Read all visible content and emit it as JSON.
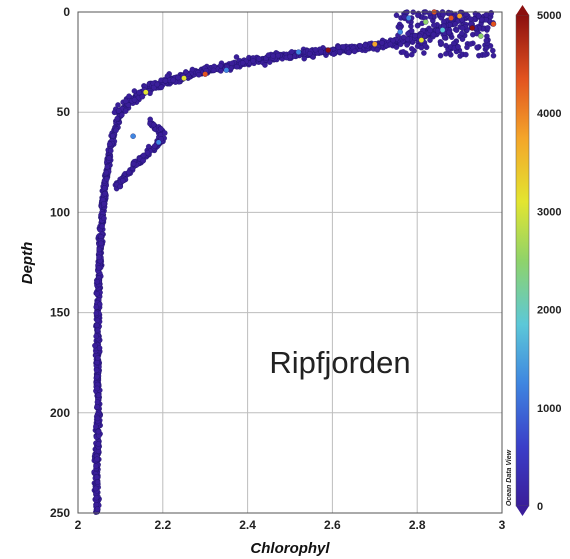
{
  "chart_data": {
    "type": "scatter",
    "title": "",
    "xlabel": "Chlorophyl",
    "ylabel": "Depth",
    "xlim": [
      2,
      3
    ],
    "ylim": [
      0,
      250
    ],
    "y_inverted": true,
    "grid": true,
    "x_ticks": [
      "2",
      "2.2",
      "2.4",
      "2.6",
      "2.8",
      "3"
    ],
    "y_ticks": [
      "0",
      "50",
      "100",
      "150",
      "200",
      "250"
    ],
    "annotation": "Ripfjorden",
    "colorbar": {
      "range": [
        0,
        5000
      ],
      "ticks": [
        "0",
        "1000",
        "2000",
        "3000",
        "4000",
        "5000"
      ],
      "colors": [
        "#3a1e9a",
        "#3a3ec8",
        "#3f86e0",
        "#5cc8d8",
        "#8fd36a",
        "#e3e530",
        "#f4a52a",
        "#e2531f",
        "#8b0f0f"
      ],
      "credit": "Ocean Data View"
    },
    "profile": {
      "description_free": true,
      "main_trunk": [
        [
          2.045,
          250
        ],
        [
          2.045,
          240
        ],
        [
          2.043,
          230
        ],
        [
          2.045,
          220
        ],
        [
          2.046,
          210
        ],
        [
          2.047,
          200
        ],
        [
          2.047,
          190
        ],
        [
          2.046,
          180
        ],
        [
          2.046,
          170
        ],
        [
          2.046,
          160
        ],
        [
          2.047,
          150
        ],
        [
          2.048,
          140
        ],
        [
          2.05,
          130
        ],
        [
          2.052,
          120
        ],
        [
          2.054,
          110
        ],
        [
          2.058,
          100
        ],
        [
          2.062,
          90
        ],
        [
          2.068,
          80
        ],
        [
          2.075,
          70
        ],
        [
          2.085,
          60
        ],
        [
          2.1,
          50
        ],
        [
          2.13,
          43
        ],
        [
          2.18,
          37
        ],
        [
          2.25,
          32
        ],
        [
          2.33,
          28
        ],
        [
          2.42,
          24
        ],
        [
          2.52,
          21
        ],
        [
          2.62,
          19
        ],
        [
          2.7,
          17
        ],
        [
          2.78,
          14
        ],
        [
          2.84,
          10
        ],
        [
          2.88,
          6
        ],
        [
          2.9,
          3
        ]
      ],
      "secondary_branch": [
        [
          2.09,
          88
        ],
        [
          2.11,
          82
        ],
        [
          2.13,
          77
        ],
        [
          2.16,
          72
        ],
        [
          2.18,
          67
        ],
        [
          2.2,
          63
        ],
        [
          2.19,
          58
        ],
        [
          2.17,
          55
        ]
      ],
      "surface_cluster": {
        "x_range": [
          2.75,
          2.98
        ],
        "depth_range": [
          0,
          22
        ]
      },
      "highlight_points": [
        {
          "x": 2.84,
          "y": 0,
          "value": 4600
        },
        {
          "x": 2.88,
          "y": 3,
          "value": 4100
        },
        {
          "x": 2.9,
          "y": 2,
          "value": 3800
        },
        {
          "x": 2.93,
          "y": 8,
          "value": 4700
        },
        {
          "x": 2.82,
          "y": 5,
          "value": 2200
        },
        {
          "x": 2.78,
          "y": 3,
          "value": 1500
        },
        {
          "x": 2.86,
          "y": 9,
          "value": 1800
        },
        {
          "x": 2.95,
          "y": 12,
          "value": 2600
        },
        {
          "x": 2.81,
          "y": 14,
          "value": 3300
        },
        {
          "x": 2.76,
          "y": 10,
          "value": 1300
        },
        {
          "x": 2.98,
          "y": 6,
          "value": 4300
        },
        {
          "x": 2.7,
          "y": 16,
          "value": 3600
        },
        {
          "x": 2.59,
          "y": 19,
          "value": 4800
        },
        {
          "x": 2.52,
          "y": 20,
          "value": 1400
        },
        {
          "x": 2.25,
          "y": 33,
          "value": 2900
        },
        {
          "x": 2.3,
          "y": 31,
          "value": 4200
        },
        {
          "x": 2.35,
          "y": 29,
          "value": 1500
        },
        {
          "x": 2.16,
          "y": 40,
          "value": 3100
        },
        {
          "x": 2.13,
          "y": 62,
          "value": 1200
        },
        {
          "x": 2.19,
          "y": 65,
          "value": 1300
        }
      ]
    }
  }
}
